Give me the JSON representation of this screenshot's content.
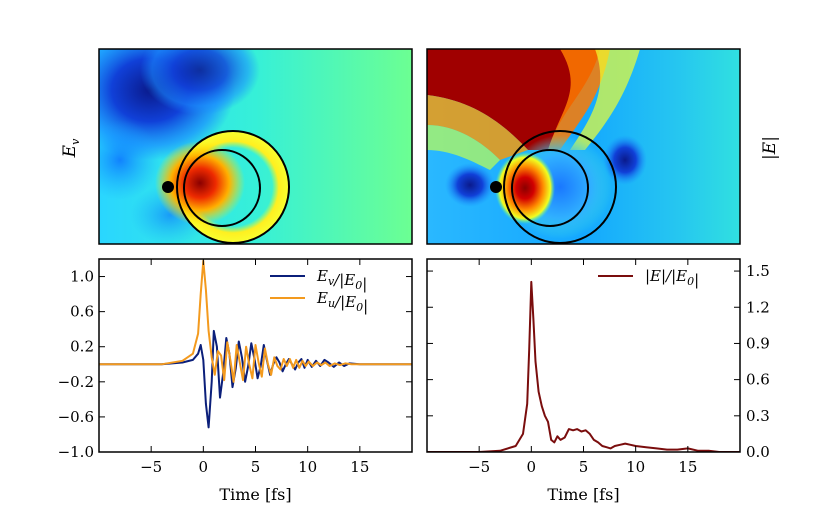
{
  "colors": {
    "ev_line": "#0b1f7a",
    "eu_line": "#f39a1e",
    "e_abs_line": "#7a0d0d",
    "frame": "#000000"
  },
  "chart_data": [
    {
      "type": "heatmap",
      "panel": "top-left",
      "ylabel": "E_v",
      "description_none": true
    },
    {
      "type": "heatmap",
      "panel": "top-right",
      "ylabel": "|E|"
    },
    {
      "type": "line",
      "panel": "bottom-left",
      "xlabel": "Time [fs]",
      "xlim": [
        -10,
        20
      ],
      "ylim": [
        -1.0,
        1.2
      ],
      "xticks": [
        -5,
        0,
        5,
        10,
        15
      ],
      "yticks": [
        -1.0,
        -0.6,
        -0.2,
        0.2,
        0.6,
        1.0
      ],
      "legend_position": "top-right",
      "series": [
        {
          "name": "E_v/|E_0|",
          "color_key": "ev_line",
          "x": [
            -10,
            -4,
            -2,
            -1,
            -0.5,
            -0.25,
            0,
            0.25,
            0.5,
            0.8,
            1.0,
            1.3,
            1.6,
            1.9,
            2.2,
            2.5,
            2.8,
            3.1,
            3.4,
            3.7,
            4.0,
            4.3,
            4.6,
            4.9,
            5.2,
            5.5,
            5.8,
            6.1,
            6.4,
            6.7,
            7.0,
            7.3,
            7.6,
            7.9,
            8.2,
            8.5,
            8.8,
            9.1,
            9.4,
            9.7,
            10.0,
            10.4,
            10.8,
            11.2,
            11.6,
            12.0,
            12.5,
            13.0,
            13.5,
            14.0,
            15,
            16,
            17,
            18,
            20
          ],
          "values": [
            0.0,
            0.0,
            0.02,
            0.05,
            0.12,
            0.22,
            0.05,
            -0.45,
            -0.72,
            -0.2,
            0.38,
            0.2,
            -0.38,
            -0.1,
            0.3,
            0.12,
            -0.26,
            -0.05,
            0.26,
            0.08,
            -0.2,
            -0.02,
            0.24,
            0.06,
            -0.16,
            -0.02,
            0.22,
            0.04,
            -0.12,
            0.0,
            0.08,
            0.02,
            -0.08,
            0.0,
            0.06,
            0.0,
            -0.06,
            0.02,
            0.06,
            -0.04,
            0.05,
            -0.03,
            0.04,
            -0.02,
            0.05,
            0.02,
            -0.03,
            0.02,
            -0.02,
            0.01,
            0.0,
            0.0,
            0.0,
            0.0,
            0.0
          ]
        },
        {
          "name": "E_u/|E_0|",
          "color_key": "eu_line",
          "x": [
            -10,
            -4,
            -2,
            -1,
            -0.5,
            -0.25,
            0,
            0.25,
            0.5,
            0.8,
            1.1,
            1.4,
            1.7,
            2.0,
            2.3,
            2.6,
            2.9,
            3.2,
            3.5,
            3.8,
            4.1,
            4.4,
            4.7,
            5.0,
            5.3,
            5.6,
            5.9,
            6.2,
            6.5,
            6.8,
            7.1,
            7.4,
            7.7,
            8.0,
            8.3,
            8.6,
            8.9,
            9.2,
            9.5,
            9.8,
            10.1,
            10.5,
            10.9,
            11.3,
            11.7,
            12.1,
            12.6,
            13.1,
            13.6,
            14.2,
            15,
            16,
            17,
            18,
            20
          ],
          "values": [
            0.0,
            0.0,
            0.04,
            0.12,
            0.35,
            0.8,
            1.18,
            0.85,
            0.38,
            0.08,
            -0.12,
            0.15,
            0.1,
            -0.18,
            0.25,
            0.04,
            -0.2,
            0.22,
            0.02,
            -0.18,
            0.2,
            0.0,
            -0.16,
            0.22,
            0.02,
            -0.14,
            0.18,
            0.0,
            -0.12,
            0.08,
            -0.02,
            -0.06,
            0.06,
            -0.02,
            0.06,
            -0.04,
            0.05,
            -0.04,
            0.04,
            -0.02,
            0.03,
            -0.02,
            0.02,
            -0.01,
            0.02,
            -0.02,
            0.01,
            -0.01,
            0.01,
            0.0,
            0.0,
            0.0,
            0.0,
            0.0,
            0.0
          ]
        }
      ]
    },
    {
      "type": "line",
      "panel": "bottom-right",
      "xlabel": "Time [fs]",
      "xlim": [
        -10,
        20
      ],
      "ylim": [
        0.0,
        1.6
      ],
      "xticks": [
        -5,
        0,
        5,
        10,
        15
      ],
      "yticks": [
        0.0,
        0.3,
        0.6,
        0.9,
        1.2,
        1.5
      ],
      "legend_position": "top-right",
      "series": [
        {
          "name": "|E|/|E_0|",
          "color_key": "e_abs_line",
          "x": [
            -10,
            -5,
            -3,
            -1.5,
            -0.8,
            -0.4,
            -0.2,
            0,
            0.2,
            0.4,
            0.7,
            1.0,
            1.3,
            1.6,
            1.9,
            2.2,
            2.5,
            2.8,
            3.2,
            3.6,
            4.0,
            4.4,
            4.8,
            5.2,
            5.6,
            6.0,
            6.4,
            6.8,
            7.2,
            7.6,
            8.0,
            8.5,
            9.0,
            9.5,
            10.0,
            11,
            12,
            13,
            14,
            15,
            16,
            17,
            18,
            19,
            20
          ],
          "values": [
            0.0,
            0.0,
            0.01,
            0.05,
            0.15,
            0.4,
            0.85,
            1.41,
            1.1,
            0.75,
            0.5,
            0.38,
            0.3,
            0.25,
            0.1,
            0.08,
            0.13,
            0.1,
            0.12,
            0.19,
            0.18,
            0.19,
            0.17,
            0.18,
            0.15,
            0.1,
            0.08,
            0.05,
            0.04,
            0.03,
            0.05,
            0.06,
            0.07,
            0.06,
            0.05,
            0.04,
            0.03,
            0.02,
            0.02,
            0.03,
            0.01,
            0.01,
            0.0,
            0.0,
            0.0
          ]
        }
      ]
    }
  ]
}
